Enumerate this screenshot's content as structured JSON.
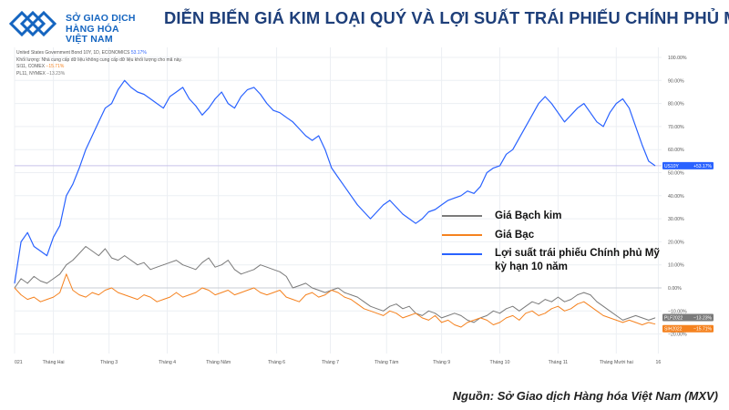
{
  "header": {
    "logo_line1": "SỞ GIAO DỊCH",
    "logo_line2": "HÀNG HÓA",
    "logo_line3": "VIỆT NAM",
    "title": "DIỄN BIẾN GIÁ KIM LOẠI QUÝ VÀ LỢI SUẤT TRÁI PHIẾU CHÍNH PHỦ MỸ"
  },
  "symbols": {
    "line1_label": "United States Government Bond 10Y, 1D, ECONOMICS",
    "line1_value": "53.17%",
    "line2_label": "Khối lượng: Nhà cung cấp dữ liệu không cung cấp dữ liệu khối lượng cho mã này.",
    "line3_label": "SI11, COMEX",
    "line3_value": "−15.71%",
    "line4_label": "PL11, NYMEX",
    "line4_value": "−13.23%"
  },
  "legend": {
    "platinum": "Giá Bạch kim",
    "silver": "Giá Bạc",
    "yield_line1": "Lợi suất trái phiếu Chính phủ Mỹ",
    "yield_line2": "kỳ hạn 10 năm"
  },
  "source": "Nguồn: Sở Giao dịch Hàng hóa Việt Nam (MXV)",
  "chart_data": {
    "type": "line",
    "title": "DIỄN BIẾN GIÁ KIM LOẠI QUÝ VÀ LỢI SUẤT TRÁI PHIẾU CHÍNH PHỦ MỸ",
    "xlabel": "",
    "ylabel": "% thay đổi",
    "ylim": [
      -25,
      100
    ],
    "y_ticks": [
      "100.00%",
      "90.00%",
      "80.00%",
      "70.00%",
      "60.00%",
      "50.00%",
      "40.00%",
      "30.00%",
      "20.00%",
      "10.00%",
      "0.00%",
      "−10.00%",
      "−20.00%"
    ],
    "x_ticks": [
      "021",
      "Tháng Hai",
      "Tháng 3",
      "Tháng 4",
      "Tháng Năm",
      "Tháng 6",
      "Tháng 7",
      "Tháng Tám",
      "Tháng 9",
      "Tháng 10",
      "Tháng 11",
      "Tháng Mười hai",
      "16"
    ],
    "x_range": [
      0,
      100
    ],
    "x_tick_positions": [
      0,
      6.0,
      14.6,
      23.6,
      31.5,
      40.5,
      48.8,
      57.5,
      66.0,
      75.0,
      84.0,
      93.0,
      99.5
    ],
    "last_value_labels": {
      "yield": "US10Y",
      "yield_value": "+53.17%",
      "platinum": "PLF2022",
      "platinum_value": "−13.23%",
      "silver": "SIH2022",
      "silver_value": "−15.71%"
    },
    "series": [
      {
        "name": "Lợi suất trái phiếu Chính phủ Mỹ kỳ hạn 10 năm",
        "color": "#2962ff",
        "x": [
          0,
          1,
          2,
          3,
          4,
          5,
          6,
          7,
          8,
          9,
          10,
          11,
          12,
          13,
          14,
          15,
          16,
          17,
          18,
          19,
          20,
          21,
          22,
          23,
          24,
          25,
          26,
          27,
          28,
          29,
          30,
          31,
          32,
          33,
          34,
          35,
          36,
          37,
          38,
          39,
          40,
          41,
          42,
          43,
          44,
          45,
          46,
          47,
          48,
          49,
          50,
          51,
          52,
          53,
          54,
          55,
          56,
          57,
          58,
          59,
          60,
          61,
          62,
          63,
          64,
          65,
          66,
          67,
          68,
          69,
          70,
          71,
          72,
          73,
          74,
          75,
          76,
          77,
          78,
          79,
          80,
          81,
          82,
          83,
          84,
          85,
          86,
          87,
          88,
          89,
          90,
          91,
          92,
          93,
          94,
          95,
          96,
          97,
          98,
          99
        ],
        "values": [
          2,
          20,
          24,
          18,
          16,
          14,
          22,
          27,
          40,
          45,
          52,
          60,
          66,
          72,
          78,
          80,
          86,
          90,
          87,
          85,
          84,
          82,
          80,
          78,
          83,
          85,
          87,
          82,
          79,
          75,
          78,
          82,
          85,
          80,
          78,
          83,
          86,
          87,
          84,
          80,
          77,
          76,
          74,
          72,
          69,
          66,
          64,
          66,
          60,
          52,
          48,
          44,
          40,
          36,
          33,
          30,
          33,
          36,
          38,
          35,
          32,
          30,
          28,
          30,
          33,
          34,
          36,
          38,
          39,
          40,
          42,
          41,
          44,
          50,
          52,
          53,
          58,
          60,
          65,
          70,
          75,
          80,
          83,
          80,
          76,
          72,
          75,
          78,
          80,
          76,
          72,
          70,
          76,
          80,
          82,
          78,
          70,
          62,
          55,
          53
        ],
        "last_label": "+53.17%"
      },
      {
        "name": "Giá Bạch kim",
        "color": "#7a7a7a",
        "x": [
          0,
          1,
          2,
          3,
          4,
          5,
          6,
          7,
          8,
          9,
          10,
          11,
          12,
          13,
          14,
          15,
          16,
          17,
          18,
          19,
          20,
          21,
          22,
          23,
          24,
          25,
          26,
          27,
          28,
          29,
          30,
          31,
          32,
          33,
          34,
          35,
          36,
          37,
          38,
          39,
          40,
          41,
          42,
          43,
          44,
          45,
          46,
          47,
          48,
          49,
          50,
          51,
          52,
          53,
          54,
          55,
          56,
          57,
          58,
          59,
          60,
          61,
          62,
          63,
          64,
          65,
          66,
          67,
          68,
          69,
          70,
          71,
          72,
          73,
          74,
          75,
          76,
          77,
          78,
          79,
          80,
          81,
          82,
          83,
          84,
          85,
          86,
          87,
          88,
          89,
          90,
          91,
          92,
          93,
          94,
          95,
          96,
          97,
          98,
          99
        ],
        "values": [
          0,
          4,
          2,
          5,
          3,
          2,
          4,
          6,
          10,
          12,
          15,
          18,
          16,
          14,
          17,
          13,
          12,
          14,
          12,
          10,
          11,
          8,
          9,
          10,
          11,
          12,
          10,
          9,
          8,
          11,
          13,
          9,
          10,
          12,
          8,
          6,
          7,
          8,
          10,
          9,
          8,
          7,
          5,
          0,
          1,
          2,
          0,
          -1,
          -2,
          -1,
          0,
          -2,
          -3,
          -4,
          -6,
          -8,
          -9,
          -10,
          -8,
          -7,
          -9,
          -8,
          -11,
          -12,
          -10,
          -11,
          -13,
          -12,
          -11,
          -12,
          -14,
          -15,
          -13,
          -12,
          -10,
          -11,
          -9,
          -8,
          -10,
          -8,
          -6,
          -7,
          -5,
          -6,
          -4,
          -6,
          -5,
          -3,
          -2,
          -3,
          -6,
          -8,
          -10,
          -12,
          -14,
          -13,
          -12,
          -13,
          -14,
          -13
        ],
        "last_label": "−13.23%"
      },
      {
        "name": "Giá Bạc",
        "color": "#f5821f",
        "x": [
          0,
          1,
          2,
          3,
          4,
          5,
          6,
          7,
          8,
          9,
          10,
          11,
          12,
          13,
          14,
          15,
          16,
          17,
          18,
          19,
          20,
          21,
          22,
          23,
          24,
          25,
          26,
          27,
          28,
          29,
          30,
          31,
          32,
          33,
          34,
          35,
          36,
          37,
          38,
          39,
          40,
          41,
          42,
          43,
          44,
          45,
          46,
          47,
          48,
          49,
          50,
          51,
          52,
          53,
          54,
          55,
          56,
          57,
          58,
          59,
          60,
          61,
          62,
          63,
          64,
          65,
          66,
          67,
          68,
          69,
          70,
          71,
          72,
          73,
          74,
          75,
          76,
          77,
          78,
          79,
          80,
          81,
          82,
          83,
          84,
          85,
          86,
          87,
          88,
          89,
          90,
          91,
          92,
          93,
          94,
          95,
          96,
          97,
          98,
          99
        ],
        "values": [
          0,
          -3,
          -5,
          -4,
          -6,
          -5,
          -4,
          -2,
          6,
          -1,
          -3,
          -4,
          -2,
          -3,
          -1,
          0,
          -2,
          -3,
          -4,
          -5,
          -3,
          -4,
          -6,
          -5,
          -4,
          -2,
          -4,
          -3,
          -2,
          0,
          -1,
          -3,
          -2,
          -1,
          -3,
          -2,
          -1,
          0,
          -2,
          -3,
          -2,
          -1,
          -4,
          -5,
          -6,
          -3,
          -2,
          -4,
          -3,
          -1,
          -2,
          -4,
          -5,
          -7,
          -9,
          -10,
          -11,
          -12,
          -10,
          -11,
          -13,
          -12,
          -11,
          -13,
          -14,
          -12,
          -15,
          -14,
          -16,
          -17,
          -15,
          -14,
          -13,
          -14,
          -16,
          -15,
          -13,
          -12,
          -14,
          -11,
          -10,
          -12,
          -11,
          -9,
          -8,
          -10,
          -9,
          -7,
          -6,
          -8,
          -10,
          -12,
          -13,
          -14,
          -15,
          -14,
          -15,
          -16,
          -15,
          -15.7
        ],
        "last_label": "−15.71%"
      }
    ]
  }
}
